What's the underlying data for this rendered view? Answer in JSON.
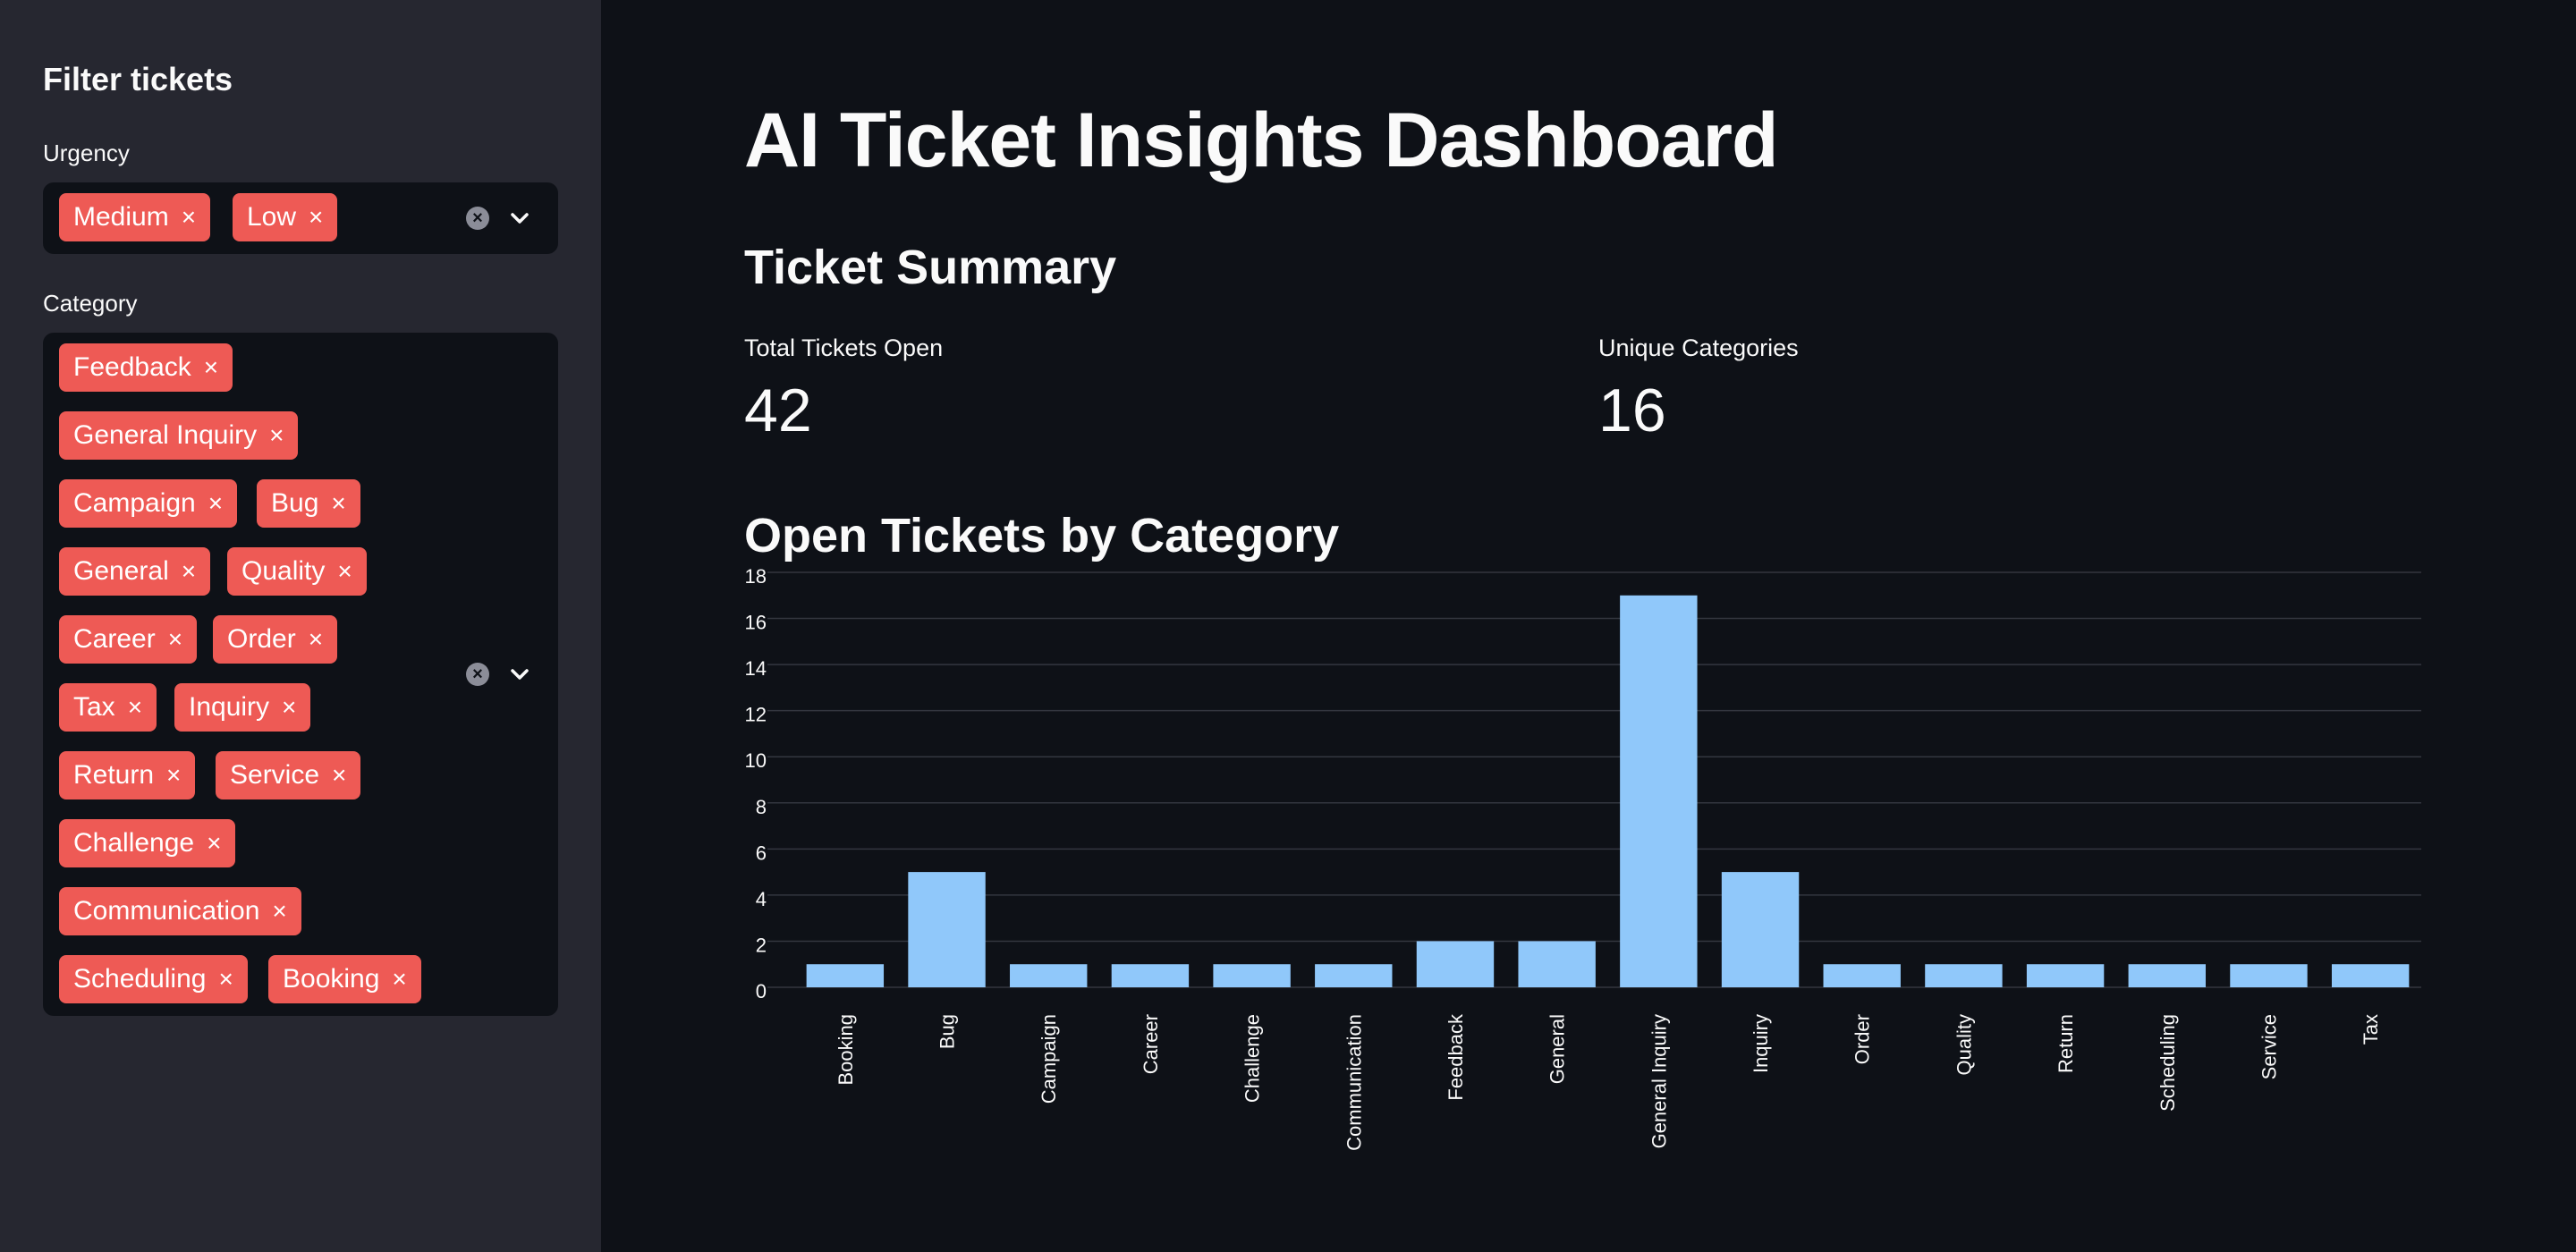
{
  "sidebar": {
    "title": "Filter tickets",
    "urgency": {
      "label": "Urgency",
      "selected": [
        "Medium",
        "Low"
      ]
    },
    "category": {
      "label": "Category",
      "selected": [
        "Feedback",
        "General Inquiry",
        "Campaign",
        "Bug",
        "General",
        "Quality",
        "Career",
        "Order",
        "Tax",
        "Inquiry",
        "Return",
        "Service",
        "Challenge",
        "Communication",
        "Scheduling",
        "Booking"
      ]
    },
    "tag_remove_glyph": "×",
    "clear_glyph": "×",
    "icons": {
      "clear": "clear-circle-icon",
      "dropdown": "chevron-down-icon",
      "remove": "close-icon"
    }
  },
  "main": {
    "title": "AI Ticket Insights Dashboard",
    "summary_heading": "Ticket Summary",
    "metrics": [
      {
        "label": "Total Tickets Open",
        "value": "42"
      },
      {
        "label": "Unique Categories",
        "value": "16"
      }
    ],
    "chart_heading": "Open Tickets by Category"
  },
  "colors": {
    "background": "#0e1117",
    "sidebar": "#262730",
    "tag": "#ee5a55",
    "bar": "#90c8fa",
    "grid": "#33363f"
  },
  "chart_data": {
    "type": "bar",
    "categories": [
      "Booking",
      "Bug",
      "Campaign",
      "Career",
      "Challenge",
      "Communication",
      "Feedback",
      "General",
      "General Inquiry",
      "Inquiry",
      "Order",
      "Quality",
      "Return",
      "Scheduling",
      "Service",
      "Tax"
    ],
    "values": [
      1,
      5,
      1,
      1,
      1,
      1,
      2,
      2,
      17,
      5,
      1,
      1,
      1,
      1,
      1,
      1
    ],
    "yticks": [
      "0",
      "2",
      "4",
      "6",
      "8",
      "10",
      "12",
      "14",
      "16",
      "18"
    ],
    "ylim": [
      0,
      18
    ],
    "grid": true,
    "legend": "none"
  }
}
